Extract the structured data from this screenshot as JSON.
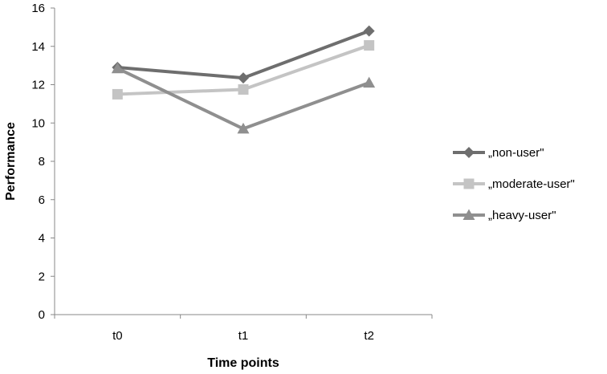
{
  "chart_data": {
    "type": "line",
    "title": "",
    "xlabel": "Time points",
    "ylabel": "Performance",
    "categories": [
      "t0",
      "t1",
      "t2"
    ],
    "ylim": [
      0,
      16
    ],
    "yticks": [
      0,
      2,
      4,
      6,
      8,
      10,
      12,
      14,
      16
    ],
    "grid": false,
    "legend_position": "right",
    "series": [
      {
        "name": "„non-user\"",
        "values": [
          12.9,
          12.35,
          14.8
        ],
        "color": "#6e6e6e",
        "marker": "diamond"
      },
      {
        "name": "„moderate-user\"",
        "values": [
          11.5,
          11.75,
          14.05
        ],
        "color": "#c4c4c4",
        "marker": "square"
      },
      {
        "name": "„heavy-user\"",
        "values": [
          12.85,
          9.7,
          12.1
        ],
        "color": "#8f8f8f",
        "marker": "triangle"
      }
    ]
  }
}
